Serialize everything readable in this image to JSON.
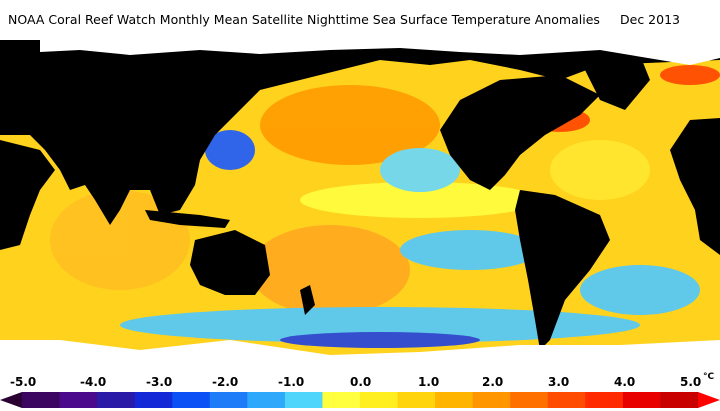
{
  "header": {
    "title": "NOAA Coral Reef Watch Monthly Mean Satellite Nighttime Sea Surface Temperature Anomalies",
    "date": "Dec 2013"
  },
  "legend": {
    "ticks": [
      "-5.0",
      "-4.0",
      "-3.0",
      "-2.0",
      "-1.0",
      "0.0",
      "1.0",
      "2.0",
      "3.0",
      "4.0",
      "5.0"
    ],
    "unit": "°C",
    "colors": [
      "#2b0033",
      "#3a0660",
      "#4b0a8c",
      "#2a1aa8",
      "#1428d8",
      "#0a50f5",
      "#1e7cf8",
      "#2ea8fa",
      "#4fd4fc",
      "#ffff40",
      "#ffee20",
      "#ffd40c",
      "#ffb400",
      "#ff9600",
      "#ff7000",
      "#ff4c00",
      "#ff2a00",
      "#e80000",
      "#c80000",
      "#ff0000"
    ]
  },
  "map_colors": {
    "land": "#000000",
    "ice": "#ffffff",
    "warm": "#ffd21e",
    "warmer": "#ff9a00",
    "hot": "#ff4400",
    "neutral": "#ffff40",
    "cool": "#4fc7ff",
    "cold": "#1a5aff"
  }
}
